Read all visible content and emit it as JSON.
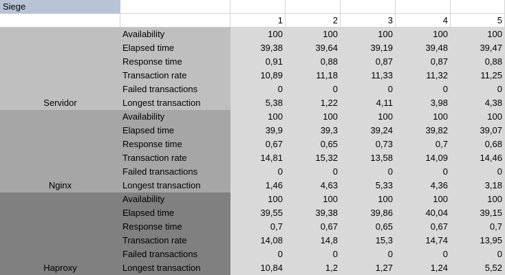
{
  "sheet": {
    "title": "Siege",
    "columns": [
      "1",
      "2",
      "3",
      "4",
      "5"
    ],
    "metrics": [
      "Availability",
      "Elapsed time",
      "Response time",
      "Transaction rate",
      "Failed transactions",
      "Longest transaction"
    ],
    "groups": [
      {
        "name": "Servidor",
        "color": "#bfbfbf",
        "rows": [
          [
            "100",
            "100",
            "100",
            "100",
            "100"
          ],
          [
            "39,38",
            "39,64",
            "39,19",
            "39,48",
            "39,47"
          ],
          [
            "0,91",
            "0,88",
            "0,87",
            "0,87",
            "0,88"
          ],
          [
            "10,89",
            "11,18",
            "11,33",
            "11,32",
            "11,25"
          ],
          [
            "0",
            "0",
            "0",
            "0",
            "0"
          ],
          [
            "5,38",
            "1,22",
            "4,11",
            "3,98",
            "4,38"
          ]
        ]
      },
      {
        "name": "Nginx",
        "color": "#a6a6a6",
        "rows": [
          [
            "100",
            "100",
            "100",
            "100",
            "100"
          ],
          [
            "39,9",
            "39,3",
            "39,24",
            "39,82",
            "39,07"
          ],
          [
            "0,67",
            "0,65",
            "0,73",
            "0,7",
            "0,68"
          ],
          [
            "14,81",
            "15,32",
            "13,58",
            "14,09",
            "14,46"
          ],
          [
            "0",
            "0",
            "0",
            "0",
            "0"
          ],
          [
            "1,46",
            "4,63",
            "5,33",
            "4,36",
            "3,18"
          ]
        ]
      },
      {
        "name": "Haproxy",
        "color": "#808080",
        "rows": [
          [
            "100",
            "100",
            "100",
            "100",
            "100"
          ],
          [
            "39,55",
            "39,38",
            "39,86",
            "40,04",
            "39,15"
          ],
          [
            "0,7",
            "0,67",
            "0,65",
            "0,67",
            "0,7"
          ],
          [
            "14,08",
            "14,8",
            "15,3",
            "14,74",
            "13,95"
          ],
          [
            "0",
            "0",
            "0",
            "0",
            "0"
          ],
          [
            "10,84",
            "1,2",
            "1,27",
            "1,24",
            "5,52"
          ]
        ]
      }
    ]
  }
}
